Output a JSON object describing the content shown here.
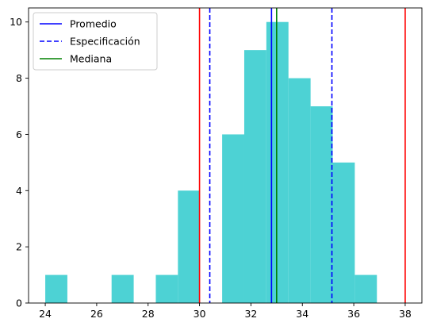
{
  "chart_data": {
    "type": "bar",
    "title": "",
    "xlabel": "",
    "ylabel": "",
    "xlim": [
      23.35,
      38.65
    ],
    "ylim": [
      0,
      10.5
    ],
    "xticks": [
      24,
      26,
      28,
      30,
      32,
      34,
      36,
      38
    ],
    "yticks": [
      0,
      2,
      4,
      6,
      8,
      10
    ],
    "grid": false,
    "bar_color": "#4dd2d4",
    "bins": [
      {
        "x0": 24.0,
        "x1": 24.86,
        "count": 1
      },
      {
        "x0": 24.86,
        "x1": 25.72,
        "count": 0
      },
      {
        "x0": 25.72,
        "x1": 26.58,
        "count": 0
      },
      {
        "x0": 26.58,
        "x1": 27.44,
        "count": 1
      },
      {
        "x0": 27.44,
        "x1": 28.3,
        "count": 0
      },
      {
        "x0": 28.3,
        "x1": 29.16,
        "count": 1
      },
      {
        "x0": 29.16,
        "x1": 30.02,
        "count": 4
      },
      {
        "x0": 30.02,
        "x1": 30.88,
        "count": 0
      },
      {
        "x0": 30.88,
        "x1": 31.74,
        "count": 6
      },
      {
        "x0": 31.74,
        "x1": 32.6,
        "count": 9
      },
      {
        "x0": 32.6,
        "x1": 33.46,
        "count": 10
      },
      {
        "x0": 33.46,
        "x1": 34.32,
        "count": 8
      },
      {
        "x0": 34.32,
        "x1": 35.18,
        "count": 7
      },
      {
        "x0": 35.18,
        "x1": 36.04,
        "count": 5
      },
      {
        "x0": 36.04,
        "x1": 36.9,
        "count": 1
      }
    ],
    "vlines": [
      {
        "x": 30.0,
        "color": "#ff0000",
        "style": "solid"
      },
      {
        "x": 38.0,
        "color": "#ff0000",
        "style": "solid"
      },
      {
        "x": 30.4,
        "color": "#0000ff",
        "style": "dashed"
      },
      {
        "x": 35.15,
        "color": "#0000ff",
        "style": "dashed"
      },
      {
        "x": 32.8,
        "color": "#0000ff",
        "style": "solid"
      },
      {
        "x": 33.0,
        "color": "#008000",
        "style": "solid"
      }
    ],
    "legend": {
      "placement": "top-left",
      "entries": [
        {
          "label": "Promedio",
          "color": "#0000ff",
          "style": "solid"
        },
        {
          "label": "Especificación",
          "color": "#0000ff",
          "style": "dashed"
        },
        {
          "label": "Mediana",
          "color": "#008000",
          "style": "solid"
        }
      ]
    }
  }
}
